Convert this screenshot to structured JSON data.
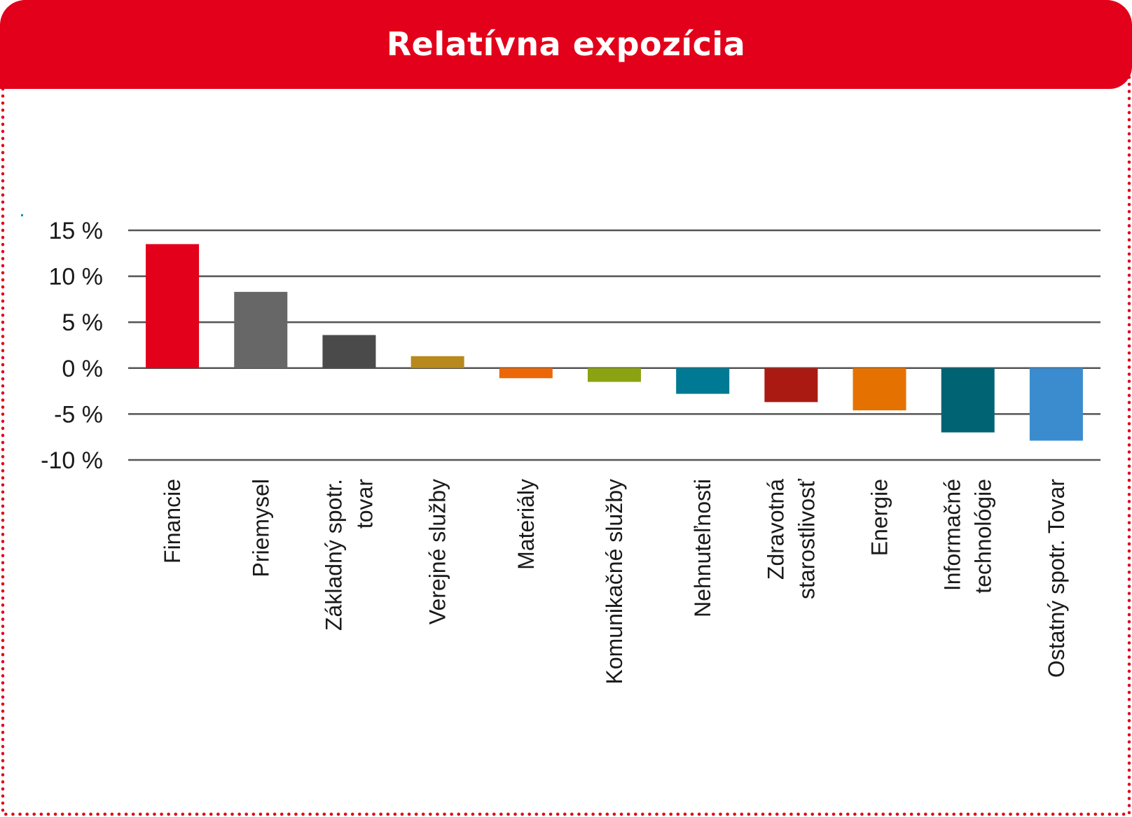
{
  "header": {
    "title": "Relatívna expozícia"
  },
  "colors": {
    "accent": "#e2001a",
    "grid": "#555555"
  },
  "chart_data": {
    "type": "bar",
    "title": "Relatívna expozícia",
    "xlabel": "",
    "ylabel": "",
    "ylim": [
      -10,
      15
    ],
    "yticks": [
      15,
      10,
      5,
      0,
      -5,
      -10
    ],
    "ytick_labels": [
      "15 %",
      "10 %",
      "5 %",
      "0 %",
      "-5 %",
      "-10 %"
    ],
    "grid": true,
    "categories": [
      [
        "Financie"
      ],
      [
        "Priemysel"
      ],
      [
        "Základný spotr.",
        "tovar"
      ],
      [
        "Verejné služby"
      ],
      [
        "Materiály"
      ],
      [
        "Komunikačné služby"
      ],
      [
        "Nehnuteľnosti"
      ],
      [
        "Zdravotná",
        "starostlivosť"
      ],
      [
        "Energie"
      ],
      [
        "Informačné",
        "technológie"
      ],
      [
        "Ostatný spotr. Tovar"
      ]
    ],
    "values": [
      13.5,
      8.3,
      3.6,
      1.3,
      -1.1,
      -1.5,
      -2.8,
      -3.7,
      -4.6,
      -7.0,
      -7.9
    ],
    "bar_colors": [
      "#e2001a",
      "#676767",
      "#4a4a4a",
      "#b8891c",
      "#ec6707",
      "#8ba312",
      "#007a94",
      "#ab1a12",
      "#e57200",
      "#006374",
      "#3a8ccf"
    ]
  }
}
